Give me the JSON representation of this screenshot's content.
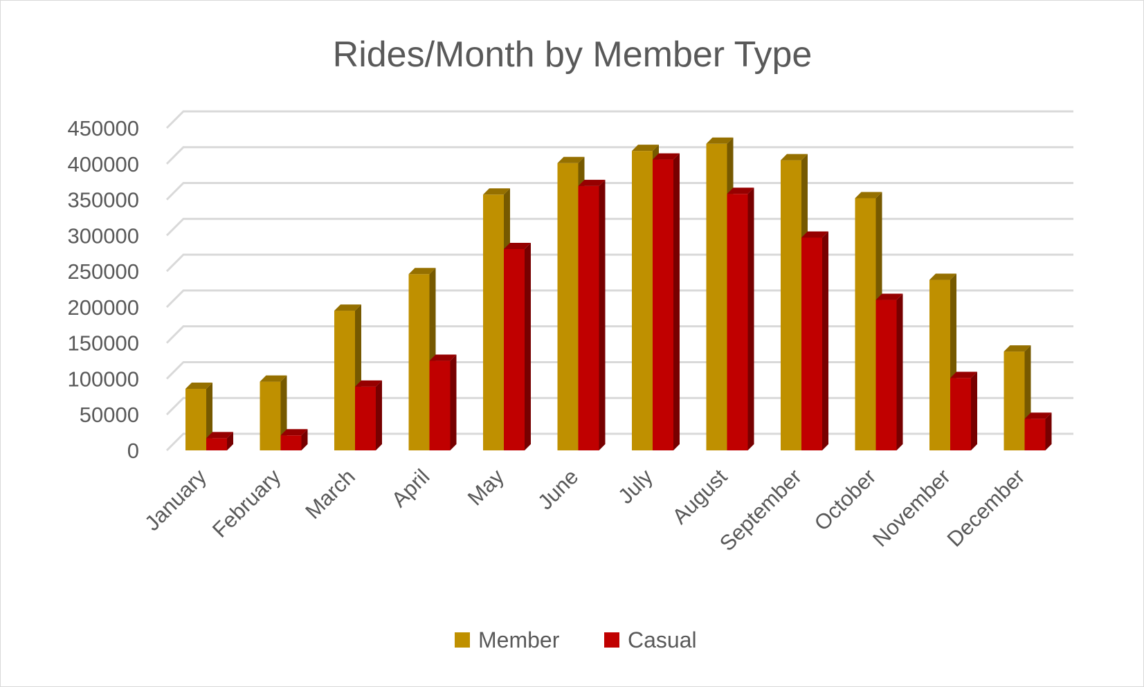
{
  "chart_data": {
    "type": "bar",
    "title": "Rides/Month by Member Type",
    "xlabel": "",
    "ylabel": "",
    "ylim": [
      0,
      450000
    ],
    "yticks": [
      0,
      50000,
      100000,
      150000,
      200000,
      250000,
      300000,
      350000,
      400000,
      450000
    ],
    "y_tick_labels": [
      "0",
      "50000",
      "100000",
      "150000",
      "200000",
      "250000",
      "300000",
      "350000",
      "400000",
      "450000"
    ],
    "grid": true,
    "legend_position": "bottom",
    "categories": [
      "January",
      "February",
      "March",
      "April",
      "May",
      "June",
      "July",
      "August",
      "September",
      "October",
      "November",
      "December"
    ],
    "series": [
      {
        "name": "Member",
        "color": "#bf9000",
        "values": [
          86000,
          96000,
          195000,
          246000,
          357000,
          401000,
          418000,
          428000,
          405000,
          352000,
          238000,
          138000
        ]
      },
      {
        "name": "Casual",
        "color": "#c00000",
        "values": [
          17000,
          21000,
          89000,
          125000,
          281000,
          369000,
          406000,
          358000,
          297000,
          210000,
          101000,
          44000
        ]
      }
    ]
  }
}
